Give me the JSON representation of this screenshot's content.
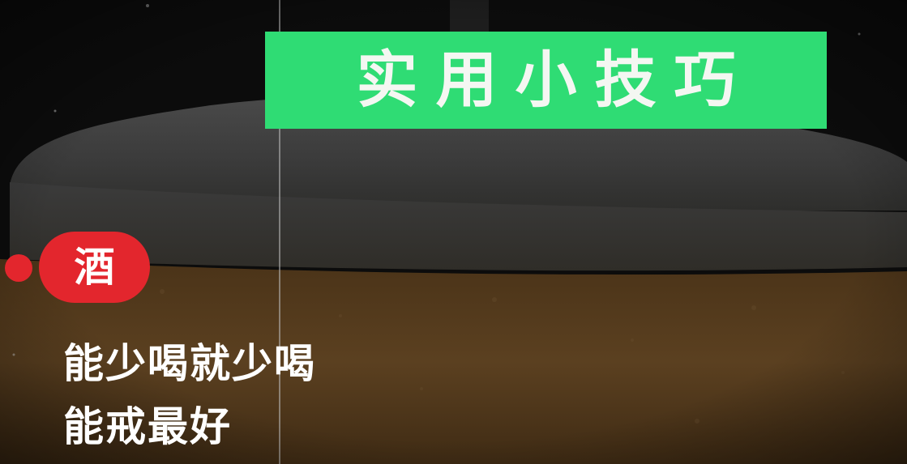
{
  "title": "实用小技巧",
  "tag": "酒",
  "lines": [
    "能少喝就少喝",
    "能戒最好"
  ],
  "colors": {
    "banner": "#2fdc74",
    "tag": "#e3262d",
    "text": "#ffffff",
    "beer": "#5a3f1c",
    "foam": "#3c3c3c"
  }
}
